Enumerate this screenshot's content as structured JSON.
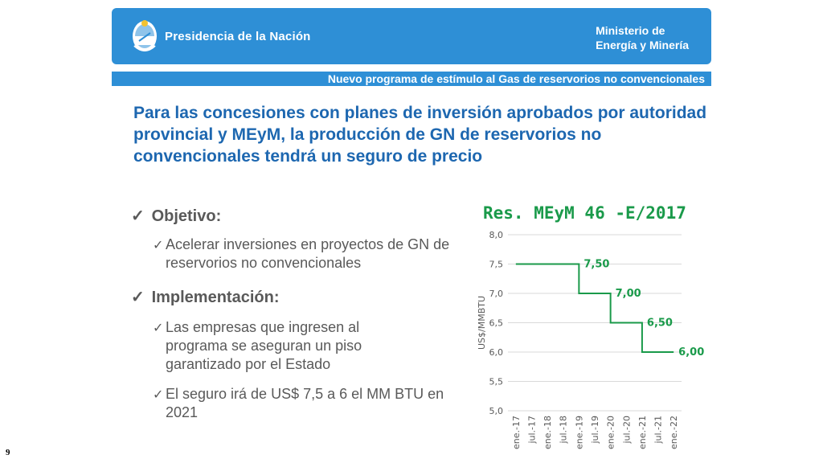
{
  "header": {
    "presidencia": "Presidencia de la Nación",
    "ministry_line1": "Ministerio de",
    "ministry_line2": "Energía y Minería"
  },
  "subheader": "Nuevo programa de estímulo al Gas de reservorios no convencionales",
  "title": "Para las concesiones con planes de inversión aprobados por autoridad provincial y MEyM, la producción de GN de reservorios no convencionales tendrá un seguro de precio",
  "bullets": {
    "objetivo_label": "Objetivo:",
    "objetivo_text": "Acelerar inversiones en proyectos de GN de reservorios no convencionales",
    "implementacion_label": "Implementación:",
    "implementacion_text1": "Las empresas que ingresen al programa se aseguran un piso garantizado por el Estado",
    "implementacion_text2": "El seguro irá de US$ 7,5 a 6 el MM BTU en 2021"
  },
  "check_mark": "✓",
  "page_number": "9",
  "colors": {
    "brand_blue": "#2e8fd6",
    "title_blue": "#1d67b0",
    "chart_green": "#1a9a4a",
    "text_gray": "#595959"
  },
  "chart_data": {
    "type": "line",
    "title": "Res. MEyM 46 -E/2017",
    "ylabel": "US$/MMBTU",
    "xlabel": "",
    "ylim": [
      5.0,
      8.0
    ],
    "yticks": [
      "5,0",
      "5,5",
      "6,0",
      "6,5",
      "7,0",
      "7,5",
      "8,0"
    ],
    "categories": [
      "ene.-17",
      "jul.-17",
      "ene.-18",
      "jul.-18",
      "ene.-19",
      "jul.-19",
      "ene.-20",
      "jul.-20",
      "ene.-21",
      "jul.-21",
      "ene.-22"
    ],
    "steps": [
      {
        "from": "ene.-17",
        "to": "ene.-19",
        "value": 7.5,
        "label": "7,50"
      },
      {
        "from": "ene.-19",
        "to": "ene.-20",
        "value": 7.0,
        "label": "7,00"
      },
      {
        "from": "ene.-20",
        "to": "ene.-21",
        "value": 6.5,
        "label": "6,50"
      },
      {
        "from": "ene.-21",
        "to": "ene.-22",
        "value": 6.0,
        "label": "6,00"
      }
    ],
    "grid": true
  }
}
